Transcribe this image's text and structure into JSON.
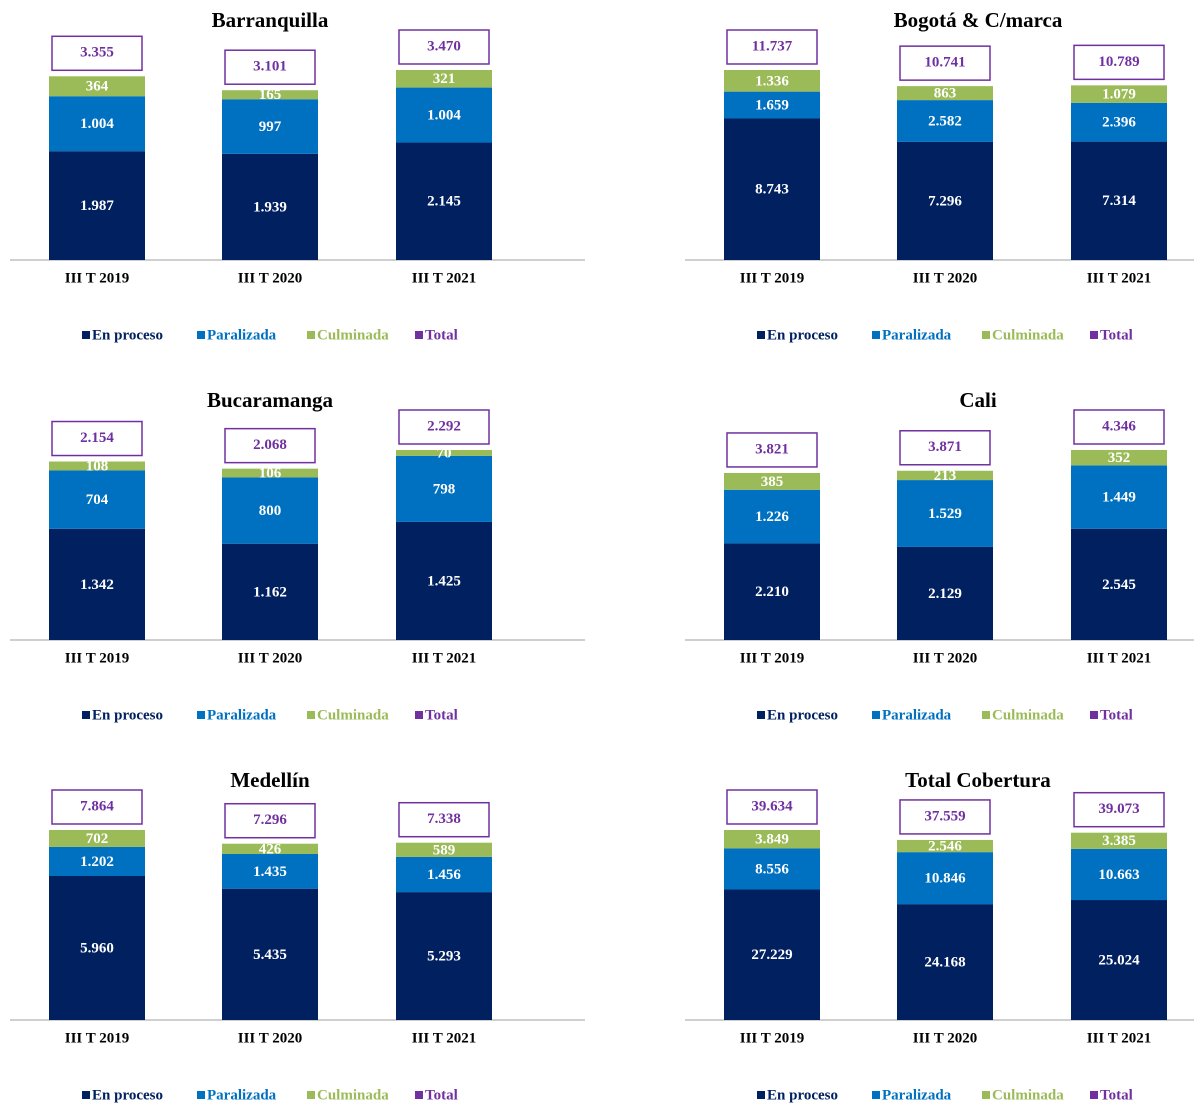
{
  "chart_data": [
    {
      "type": "bar",
      "stacked": true,
      "title": "Barranquilla",
      "categories": [
        "III T 2019",
        "III T 2020",
        "III T 2021"
      ],
      "series": [
        {
          "name": "En proceso",
          "color": "#002060",
          "values": [
            1987,
            1939,
            2145
          ],
          "value_labels": [
            "1.987",
            "1.939",
            "2.145"
          ]
        },
        {
          "name": "Paralizada",
          "color": "#0070c0",
          "values": [
            1004,
            997,
            1004
          ],
          "value_labels": [
            "1.004",
            "997",
            "1.004"
          ]
        },
        {
          "name": "Culminada",
          "color": "#9bbb59",
          "values": [
            364,
            165,
            321
          ],
          "value_labels": [
            "364",
            "165",
            "321"
          ]
        },
        {
          "name": "Total",
          "color": "#7030a0",
          "values": [
            3355,
            3101,
            3470
          ],
          "value_labels": [
            "3.355",
            "3.101",
            "3.470"
          ]
        }
      ]
    },
    {
      "type": "bar",
      "stacked": true,
      "title": "Bogotá & C/marca",
      "categories": [
        "III T 2019",
        "III T 2020",
        "III T 2021"
      ],
      "series": [
        {
          "name": "En proceso",
          "color": "#002060",
          "values": [
            8743,
            7296,
            7314
          ],
          "value_labels": [
            "8.743",
            "7.296",
            "7.314"
          ]
        },
        {
          "name": "Paralizada",
          "color": "#0070c0",
          "values": [
            1659,
            2582,
            2396
          ],
          "value_labels": [
            "1.659",
            "2.582",
            "2.396"
          ]
        },
        {
          "name": "Culminada",
          "color": "#9bbb59",
          "values": [
            1336,
            863,
            1079
          ],
          "value_labels": [
            "1.336",
            "863",
            "1.079"
          ]
        },
        {
          "name": "Total",
          "color": "#7030a0",
          "values": [
            11737,
            10741,
            10789
          ],
          "value_labels": [
            "11.737",
            "10.741",
            "10.789"
          ]
        }
      ]
    },
    {
      "type": "bar",
      "stacked": true,
      "title": "Bucaramanga",
      "categories": [
        "III T 2019",
        "III T 2020",
        "III T 2021"
      ],
      "series": [
        {
          "name": "En proceso",
          "color": "#002060",
          "values": [
            1342,
            1162,
            1425
          ],
          "value_labels": [
            "1.342",
            "1.162",
            "1.425"
          ]
        },
        {
          "name": "Paralizada",
          "color": "#0070c0",
          "values": [
            704,
            800,
            798
          ],
          "value_labels": [
            "704",
            "800",
            "798"
          ]
        },
        {
          "name": "Culminada",
          "color": "#9bbb59",
          "values": [
            108,
            106,
            70
          ],
          "value_labels": [
            "108",
            "106",
            "70"
          ]
        },
        {
          "name": "Total",
          "color": "#7030a0",
          "values": [
            2154,
            2068,
            2292
          ],
          "value_labels": [
            "2.154",
            "2.068",
            "2.292"
          ]
        }
      ]
    },
    {
      "type": "bar",
      "stacked": true,
      "title": "Cali",
      "categories": [
        "III T 2019",
        "III T 2020",
        "III T 2021"
      ],
      "series": [
        {
          "name": "En proceso",
          "color": "#002060",
          "values": [
            2210,
            2129,
            2545
          ],
          "value_labels": [
            "2.210",
            "2.129",
            "2.545"
          ]
        },
        {
          "name": "Paralizada",
          "color": "#0070c0",
          "values": [
            1226,
            1529,
            1449
          ],
          "value_labels": [
            "1.226",
            "1.529",
            "1.449"
          ]
        },
        {
          "name": "Culminada",
          "color": "#9bbb59",
          "values": [
            385,
            213,
            352
          ],
          "value_labels": [
            "385",
            "213",
            "352"
          ]
        },
        {
          "name": "Total",
          "color": "#7030a0",
          "values": [
            3821,
            3871,
            4346
          ],
          "value_labels": [
            "3.821",
            "3.871",
            "4.346"
          ]
        }
      ]
    },
    {
      "type": "bar",
      "stacked": true,
      "title": "Medellín",
      "categories": [
        "III T 2019",
        "III T 2020",
        "III T 2021"
      ],
      "series": [
        {
          "name": "En proceso",
          "color": "#002060",
          "values": [
            5960,
            5435,
            5293
          ],
          "value_labels": [
            "5.960",
            "5.435",
            "5.293"
          ]
        },
        {
          "name": "Paralizada",
          "color": "#0070c0",
          "values": [
            1202,
            1435,
            1456
          ],
          "value_labels": [
            "1.202",
            "1.435",
            "1.456"
          ]
        },
        {
          "name": "Culminada",
          "color": "#9bbb59",
          "values": [
            702,
            426,
            589
          ],
          "value_labels": [
            "702",
            "426",
            "589"
          ]
        },
        {
          "name": "Total",
          "color": "#7030a0",
          "values": [
            7864,
            7296,
            7338
          ],
          "value_labels": [
            "7.864",
            "7.296",
            "7.338"
          ]
        }
      ]
    },
    {
      "type": "bar",
      "stacked": true,
      "title": "Total Cobertura",
      "categories": [
        "III T 2019",
        "III T 2020",
        "III T 2021"
      ],
      "series": [
        {
          "name": "En proceso",
          "color": "#002060",
          "values": [
            27229,
            24168,
            25024
          ],
          "value_labels": [
            "27.229",
            "24.168",
            "25.024"
          ]
        },
        {
          "name": "Paralizada",
          "color": "#0070c0",
          "values": [
            8556,
            10846,
            10663
          ],
          "value_labels": [
            "8.556",
            "10.846",
            "10.663"
          ]
        },
        {
          "name": "Culminada",
          "color": "#9bbb59",
          "values": [
            3849,
            2546,
            3385
          ],
          "value_labels": [
            "3.849",
            "2.546",
            "3.385"
          ]
        },
        {
          "name": "Total",
          "color": "#7030a0",
          "values": [
            39634,
            37559,
            39073
          ],
          "value_labels": [
            "39.634",
            "37.559",
            "39.073"
          ]
        }
      ]
    }
  ]
}
